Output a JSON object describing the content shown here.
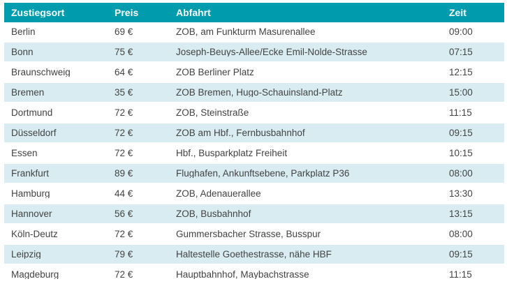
{
  "table": {
    "columns": [
      {
        "label": "Zustiegsort"
      },
      {
        "label": "Preis"
      },
      {
        "label": "Abfahrt"
      },
      {
        "label": "Zeit"
      }
    ],
    "rows": [
      {
        "city": "Berlin",
        "price": "69 €",
        "departure": "ZOB, am Funkturm Masurenallee",
        "time": "09:00"
      },
      {
        "city": "Bonn",
        "price": "75 €",
        "departure": "Joseph-Beuys-Allee/Ecke Emil-Nolde-Strasse",
        "time": "07:15"
      },
      {
        "city": "Braunschweig",
        "price": "64 €",
        "departure": "ZOB Berliner Platz",
        "time": "12:15"
      },
      {
        "city": "Bremen",
        "price": "35 €",
        "departure": "ZOB Bremen, Hugo-Schauinsland-Platz",
        "time": "15:00"
      },
      {
        "city": "Dortmund",
        "price": "72 €",
        "departure": "ZOB, Steinstraße",
        "time": "11:15"
      },
      {
        "city": "Düsseldorf",
        "price": "72 €",
        "departure": "ZOB am Hbf., Fernbusbahnhof",
        "time": "09:15"
      },
      {
        "city": "Essen",
        "price": "72 €",
        "departure": "Hbf., Busparkplatz Freiheit",
        "time": "10:15"
      },
      {
        "city": "Frankfurt",
        "price": "89 €",
        "departure": "Flughafen, Ankunftsebene, Parkplatz P36",
        "time": "08:00"
      },
      {
        "city": "Hamburg",
        "price": "44 €",
        "departure": "ZOB, Adenauerallee",
        "time": "13:30"
      },
      {
        "city": "Hannover",
        "price": "56 €",
        "departure": "ZOB, Busbahnhof",
        "time": "13:15"
      },
      {
        "city": "Köln-Deutz",
        "price": "72 €",
        "departure": "Gummersbacher Strasse, Busspur",
        "time": "08:00"
      },
      {
        "city": "Leipzig",
        "price": "79 €",
        "departure": "Haltestelle Goethestrasse, nähe HBF",
        "time": "09:15"
      },
      {
        "city": "Magdeburg",
        "price": "72 €",
        "departure": "Hauptbahnhof, Maybachstrasse",
        "time": "11:15"
      }
    ],
    "style": {
      "header_bg": "#009bad",
      "header_text": "#ffffff",
      "stripe_bg": "#d8ecf1",
      "row_bg": "#ffffff",
      "text_color": "#434343"
    }
  }
}
